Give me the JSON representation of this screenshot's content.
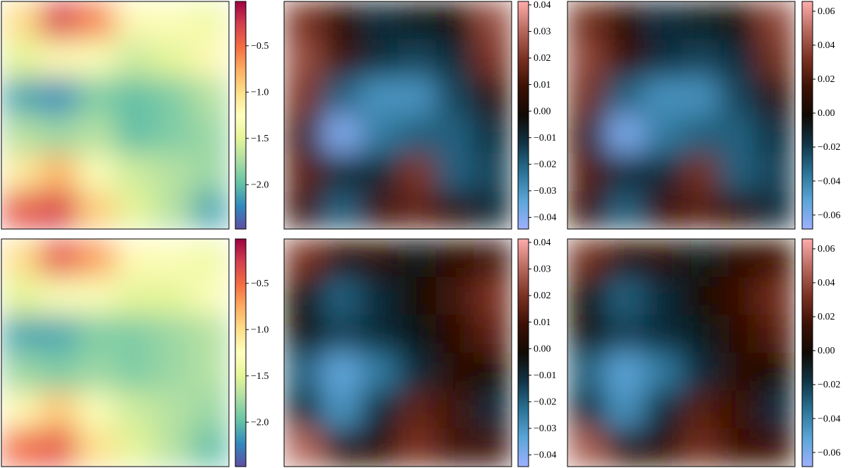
{
  "chart_data": [
    {
      "type": "heatmap",
      "colormap": [
        "#5e4fa2",
        "#3288bd",
        "#66c2a5",
        "#abdda4",
        "#e6f598",
        "#ffffbf",
        "#fee08b",
        "#fdae61",
        "#f46d43",
        "#d53e4f",
        "#9e0142"
      ],
      "zlim": [
        -2.48,
        -0.02
      ],
      "zticks": [
        {
          "value": -0.5,
          "label": "−0.5"
        },
        {
          "value": -1.0,
          "label": "−1.0"
        },
        {
          "value": -1.5,
          "label": "−1.5"
        },
        {
          "value": -2.0,
          "label": "−2.0"
        }
      ],
      "values": [
        [
          -1.0,
          -0.3,
          -0.6,
          -1.2,
          -1.3,
          -1.4
        ],
        [
          -1.5,
          -1.2,
          -1.3,
          -1.6,
          -1.5,
          -1.2
        ],
        [
          -2.1,
          -2.2,
          -1.9,
          -2.0,
          -1.9,
          -1.7
        ],
        [
          -1.7,
          -1.8,
          -1.7,
          -2.0,
          -1.9,
          -1.8
        ],
        [
          -1.1,
          -0.8,
          -1.3,
          -1.6,
          -1.7,
          -1.8
        ],
        [
          -0.4,
          -0.3,
          -0.9,
          -1.5,
          -1.7,
          -2.1
        ]
      ]
    },
    {
      "type": "heatmap",
      "colormap": [
        "#9eb0ff",
        "#5aa6d8",
        "#2a7295",
        "#113446",
        "#110a04",
        "#3c1005",
        "#7a3222",
        "#b86a5f",
        "#ffadad"
      ],
      "zlim": [
        -0.0444,
        0.0413
      ],
      "zticks": [
        0.04,
        0.03,
        0.02,
        0.01,
        {
          "value": 0,
          "label": "0.00"
        },
        {
          "value": -0.01,
          "label": "−0.01"
        },
        {
          "value": -0.02,
          "label": "−0.02"
        },
        {
          "value": -0.03,
          "label": "−0.03"
        },
        {
          "value": -0.04,
          "label": "−0.04"
        }
      ],
      "values": [
        [
          0.02,
          0.005,
          -0.01,
          -0.005,
          0.0,
          0.025
        ],
        [
          0.025,
          0.01,
          -0.01,
          -0.015,
          -0.01,
          0.02
        ],
        [
          0.02,
          -0.02,
          -0.03,
          -0.03,
          -0.015,
          0.005
        ],
        [
          0.01,
          -0.04,
          -0.025,
          -0.02,
          -0.02,
          -0.01
        ],
        [
          0.015,
          -0.01,
          -0.01,
          0.02,
          -0.02,
          -0.015
        ],
        [
          0.01,
          -0.02,
          0.01,
          0.015,
          0.005,
          -0.01
        ]
      ]
    },
    {
      "type": "heatmap",
      "colormap": [
        "#9eb0ff",
        "#5aa6d8",
        "#2a7295",
        "#113446",
        "#110a04",
        "#3c1005",
        "#7a3222",
        "#b86a5f",
        "#ffadad"
      ],
      "zlim": [
        -0.0683,
        0.0658
      ],
      "zticks": [
        0.06,
        0.04,
        0.02,
        {
          "value": 0,
          "label": "0.00"
        },
        {
          "value": -0.02,
          "label": "−0.02"
        },
        {
          "value": -0.04,
          "label": "−0.04"
        },
        {
          "value": -0.06,
          "label": "−0.06"
        }
      ],
      "values": [
        [
          0.03,
          0.008,
          -0.015,
          -0.008,
          0.0,
          0.038
        ],
        [
          0.038,
          0.015,
          -0.015,
          -0.022,
          -0.015,
          0.03
        ],
        [
          0.03,
          -0.03,
          -0.045,
          -0.045,
          -0.022,
          0.008
        ],
        [
          0.015,
          -0.06,
          -0.038,
          -0.03,
          -0.03,
          -0.015
        ],
        [
          0.022,
          -0.015,
          -0.015,
          0.03,
          -0.03,
          -0.022
        ],
        [
          0.015,
          -0.03,
          0.015,
          0.022,
          0.008,
          -0.015
        ]
      ]
    },
    {
      "type": "heatmap",
      "colormap": [
        "#5e4fa2",
        "#3288bd",
        "#66c2a5",
        "#abdda4",
        "#e6f598",
        "#ffffbf",
        "#fee08b",
        "#fdae61",
        "#f46d43",
        "#d53e4f",
        "#9e0142"
      ],
      "zlim": [
        -2.48,
        -0.02
      ],
      "zticks": [
        {
          "value": -0.5,
          "label": "−0.5"
        },
        {
          "value": -1.0,
          "label": "−1.0"
        },
        {
          "value": -1.5,
          "label": "−1.5"
        },
        {
          "value": -2.0,
          "label": "−2.0"
        }
      ],
      "values": [
        [
          -1.0,
          -0.4,
          -0.7,
          -1.2,
          -1.3,
          -1.4
        ],
        [
          -1.5,
          -1.3,
          -1.3,
          -1.5,
          -1.5,
          -1.3
        ],
        [
          -2.1,
          -2.1,
          -1.9,
          -1.9,
          -1.8,
          -1.7
        ],
        [
          -1.8,
          -1.9,
          -1.8,
          -1.9,
          -1.8,
          -1.7
        ],
        [
          -1.2,
          -0.9,
          -1.3,
          -1.6,
          -1.7,
          -1.8
        ],
        [
          -0.5,
          -0.4,
          -1.0,
          -1.5,
          -1.7,
          -2.0
        ]
      ]
    },
    {
      "type": "heatmap",
      "colormap": [
        "#9eb0ff",
        "#5aa6d8",
        "#2a7295",
        "#113446",
        "#110a04",
        "#3c1005",
        "#7a3222",
        "#b86a5f",
        "#ffadad"
      ],
      "zlim": [
        -0.0444,
        0.0413
      ],
      "zticks": [
        0.04,
        0.03,
        0.02,
        0.01,
        {
          "value": 0,
          "label": "0.00"
        },
        {
          "value": -0.01,
          "label": "−0.01"
        },
        {
          "value": -0.02,
          "label": "−0.02"
        },
        {
          "value": -0.03,
          "label": "−0.03"
        },
        {
          "value": -0.04,
          "label": "−0.04"
        }
      ],
      "values": [
        [
          0.02,
          0.005,
          0.005,
          -0.005,
          0.005,
          0.01
        ],
        [
          0.0,
          -0.02,
          -0.01,
          0.0,
          0.01,
          0.02
        ],
        [
          0.0,
          -0.015,
          -0.01,
          -0.005,
          0.005,
          0.015
        ],
        [
          -0.02,
          -0.035,
          -0.025,
          -0.01,
          0.005,
          0.0
        ],
        [
          -0.01,
          -0.03,
          -0.01,
          0.015,
          0.01,
          -0.01
        ],
        [
          0.03,
          0.005,
          0.005,
          0.02,
          0.01,
          0.01
        ]
      ]
    },
    {
      "type": "heatmap",
      "colormap": [
        "#9eb0ff",
        "#5aa6d8",
        "#2a7295",
        "#113446",
        "#110a04",
        "#3c1005",
        "#7a3222",
        "#b86a5f",
        "#ffadad"
      ],
      "zlim": [
        -0.0683,
        0.0658
      ],
      "zticks": [
        0.06,
        0.04,
        0.02,
        {
          "value": 0,
          "label": "0.00"
        },
        {
          "value": -0.02,
          "label": "−0.02"
        },
        {
          "value": -0.04,
          "label": "−0.04"
        },
        {
          "value": -0.06,
          "label": "−0.06"
        }
      ],
      "values": [
        [
          0.03,
          0.008,
          0.008,
          -0.008,
          0.008,
          0.015
        ],
        [
          0.0,
          -0.03,
          -0.015,
          0.0,
          0.015,
          0.03
        ],
        [
          0.0,
          -0.022,
          -0.015,
          -0.008,
          0.008,
          0.022
        ],
        [
          -0.03,
          -0.052,
          -0.038,
          -0.015,
          0.008,
          0.0
        ],
        [
          -0.015,
          -0.045,
          -0.015,
          0.022,
          0.015,
          -0.015
        ],
        [
          0.045,
          0.008,
          0.008,
          0.03,
          0.015,
          0.015
        ]
      ]
    }
  ]
}
